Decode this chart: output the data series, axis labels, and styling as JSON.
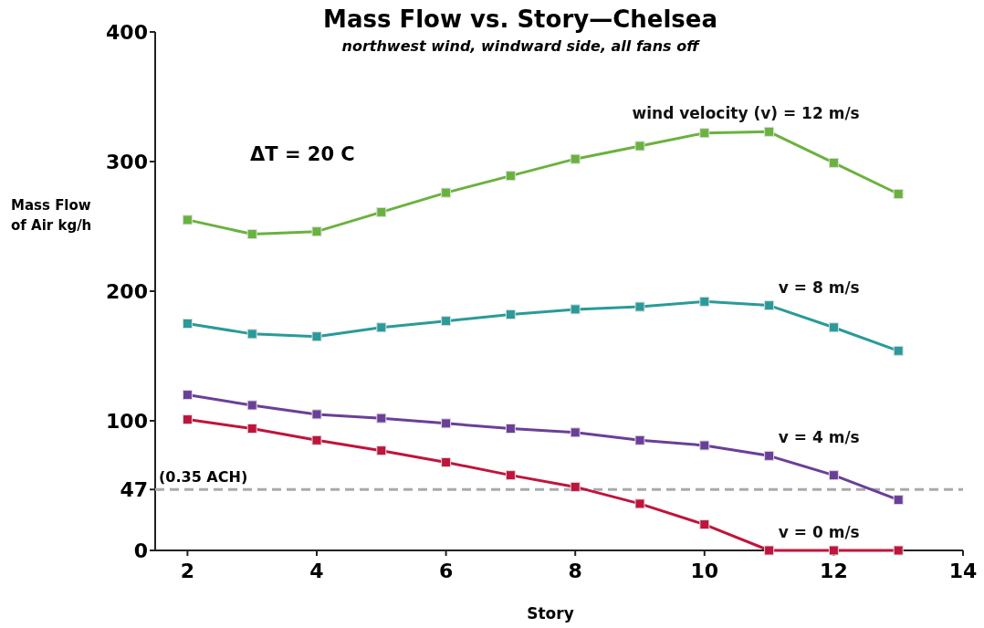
{
  "chart_data": {
    "type": "line",
    "title": "Mass Flow vs. Story—Chelsea",
    "subtitle": "northwest wind, windward side, all fans off",
    "xlabel": "Story",
    "ylabel": "Mass Flow of Air kg/h",
    "x": [
      2,
      3,
      4,
      5,
      6,
      7,
      8,
      9,
      10,
      11,
      12,
      13
    ],
    "series": [
      {
        "name": "wind velocity (v) = 12 m/s",
        "color": "#6ab23f",
        "values": [
          255,
          244,
          246,
          261,
          276,
          289,
          302,
          312,
          322,
          323,
          299,
          275
        ]
      },
      {
        "name": "v = 8 m/s",
        "color": "#2a9a9a",
        "values": [
          175,
          167,
          165,
          172,
          177,
          182,
          186,
          188,
          192,
          189,
          172,
          154
        ]
      },
      {
        "name": "v = 4 m/s",
        "color": "#6a3f98",
        "values": [
          120,
          112,
          105,
          102,
          98,
          94,
          91,
          85,
          81,
          73,
          58,
          39
        ]
      },
      {
        "name": "v = 0 m/s",
        "color": "#c0143c",
        "values": [
          101,
          94,
          85,
          77,
          68,
          58,
          49,
          36,
          20,
          0,
          0,
          0
        ]
      }
    ],
    "xlim": [
      1.5,
      14
    ],
    "xticks": [
      2,
      4,
      6,
      8,
      10,
      12,
      14
    ],
    "ylim": [
      0,
      400
    ],
    "yticks": [
      0,
      47,
      100,
      200,
      300,
      400
    ],
    "ref_lines": [
      {
        "axis": "y",
        "value": 47,
        "label": "(0.35 ACH)",
        "color": "#aaaaaa",
        "line_style": "dashed"
      }
    ],
    "annotations": [
      "ΔT = 20 C"
    ],
    "marker": "square",
    "line_style": "solid",
    "grid": false
  }
}
